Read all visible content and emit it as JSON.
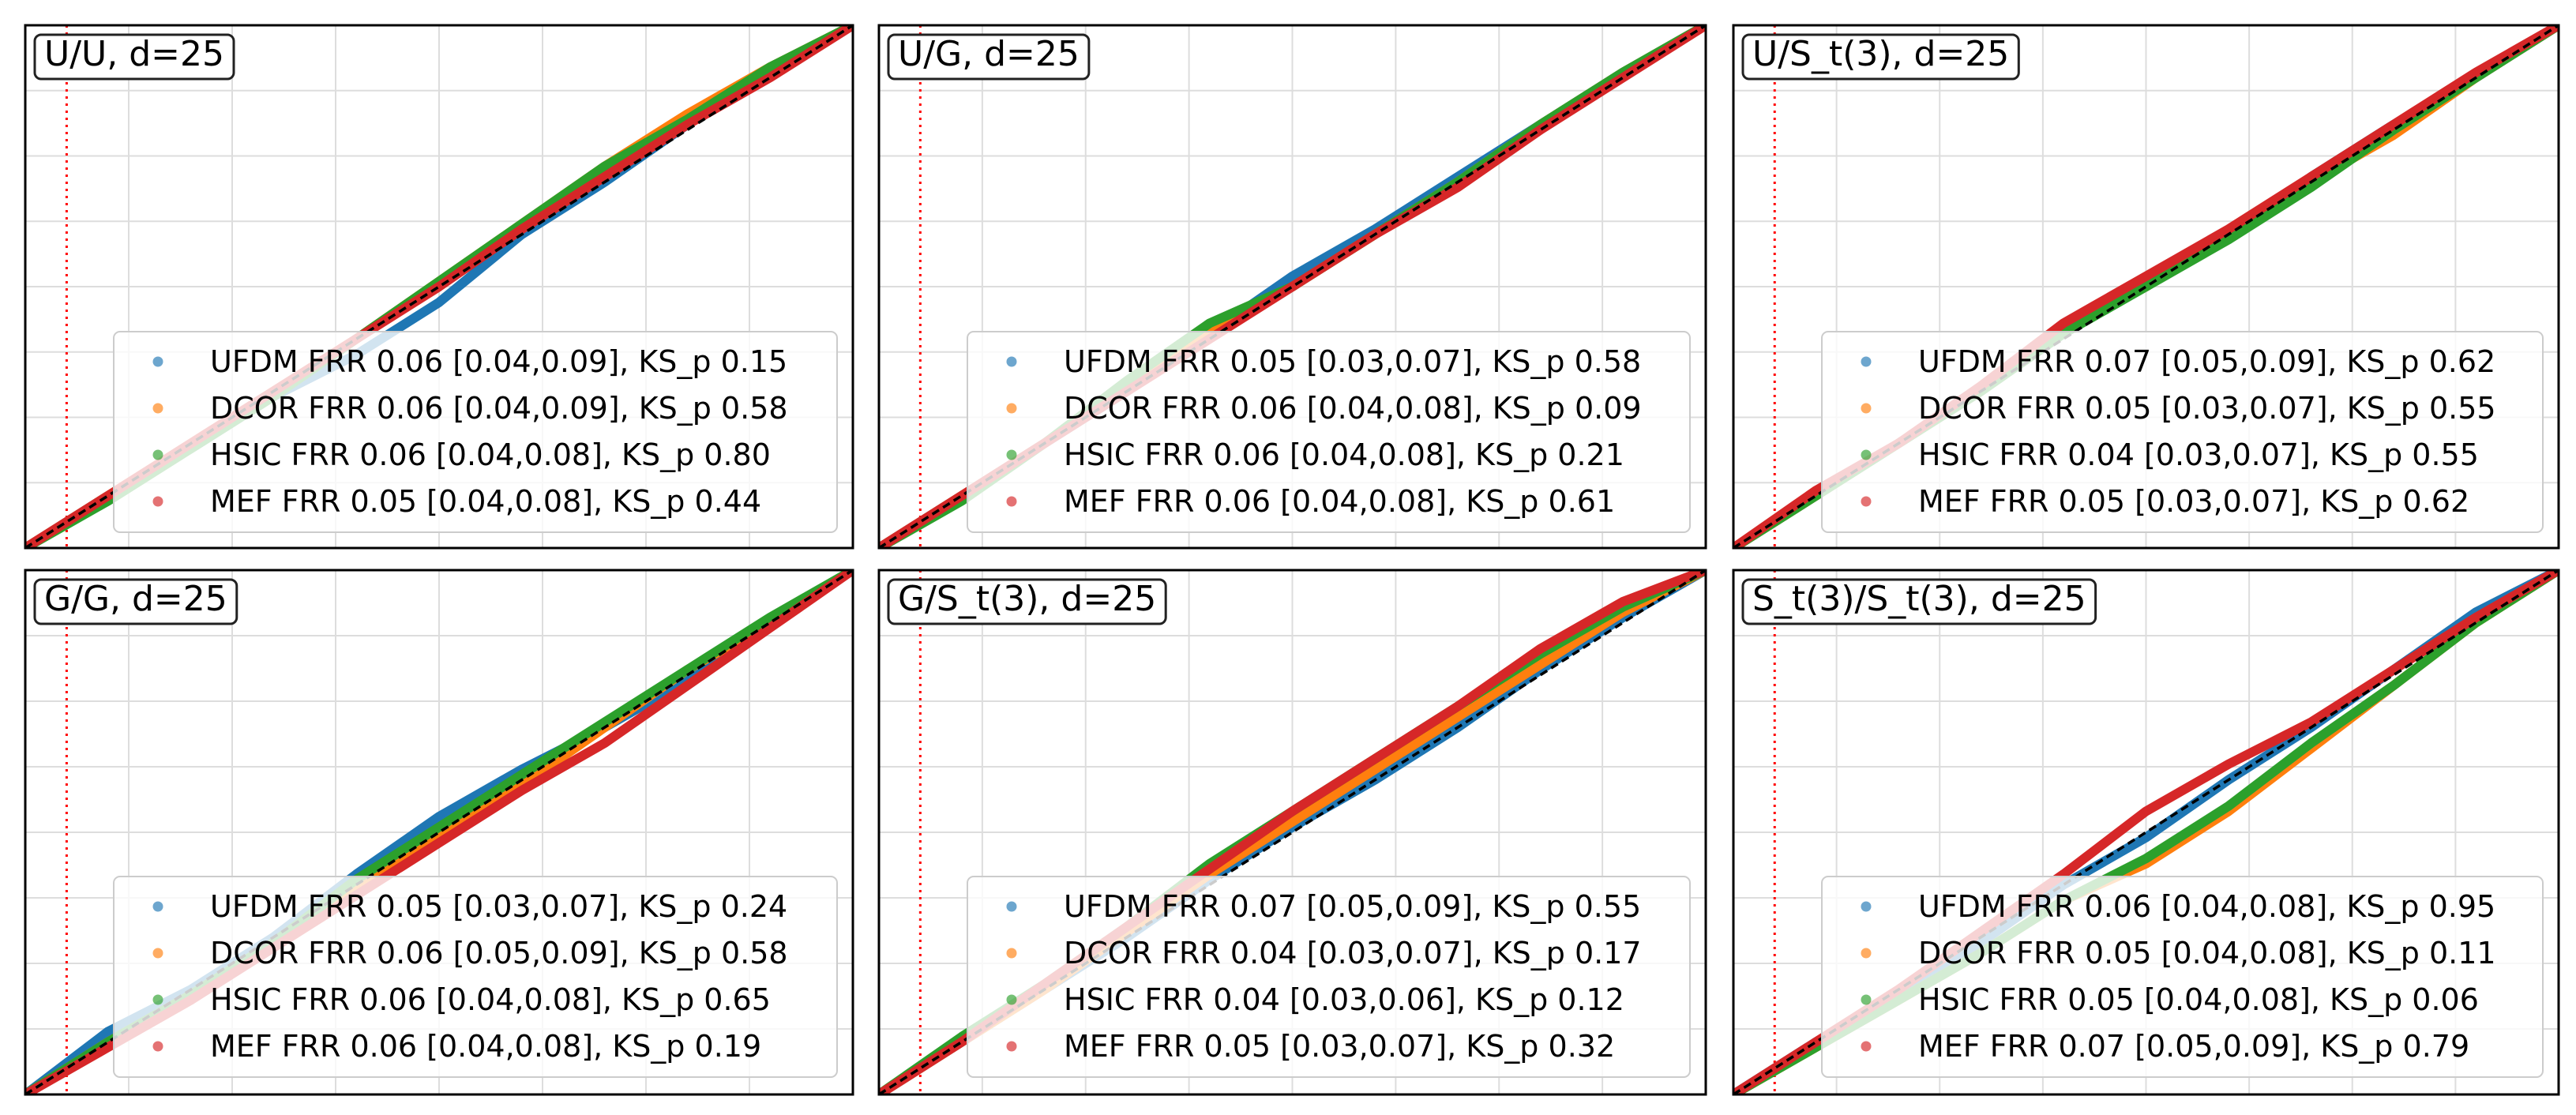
{
  "figure": {
    "colors": {
      "UFDM": "#1f77b4",
      "DCOR": "#ff7f0e",
      "HSIC": "#2ca02c",
      "MEF": "#d62728"
    },
    "diagonal_color": "#000000",
    "vline_color": "#ff0000",
    "grid": true
  },
  "chart_data": [
    {
      "type": "line",
      "title": "U/U, d=25",
      "xlim": [
        0,
        1
      ],
      "ylim": [
        0,
        1
      ],
      "vline_x": 0.05,
      "series": [
        {
          "name": "UFDM",
          "label": "UFDM FRR 0.06 [0.04,0.09], KS_p 0.15",
          "x": [
            0,
            0.1,
            0.2,
            0.3,
            0.4,
            0.5,
            0.6,
            0.7,
            0.8,
            0.9,
            1
          ],
          "y": [
            0,
            0.1,
            0.19,
            0.29,
            0.37,
            0.47,
            0.6,
            0.7,
            0.81,
            0.91,
            1
          ]
        },
        {
          "name": "DCOR",
          "label": "DCOR FRR 0.06 [0.04,0.09], KS_p 0.58",
          "x": [
            0,
            0.1,
            0.2,
            0.3,
            0.4,
            0.5,
            0.6,
            0.7,
            0.8,
            0.9,
            1
          ],
          "y": [
            0,
            0.1,
            0.2,
            0.3,
            0.4,
            0.51,
            0.62,
            0.73,
            0.83,
            0.92,
            1
          ]
        },
        {
          "name": "HSIC",
          "label": "HSIC FRR 0.06 [0.04,0.08], KS_p 0.80",
          "x": [
            0,
            0.1,
            0.2,
            0.3,
            0.4,
            0.5,
            0.6,
            0.7,
            0.8,
            0.9,
            1
          ],
          "y": [
            0,
            0.09,
            0.19,
            0.29,
            0.4,
            0.51,
            0.62,
            0.73,
            0.82,
            0.92,
            1
          ]
        },
        {
          "name": "MEF",
          "label": "MEF FRR 0.05 [0.04,0.08], KS_p 0.44",
          "x": [
            0,
            0.1,
            0.2,
            0.3,
            0.4,
            0.5,
            0.6,
            0.7,
            0.8,
            0.9,
            1
          ],
          "y": [
            0,
            0.1,
            0.2,
            0.3,
            0.4,
            0.5,
            0.61,
            0.71,
            0.81,
            0.9,
            1
          ]
        }
      ]
    },
    {
      "type": "line",
      "title": "U/G, d=25",
      "xlim": [
        0,
        1
      ],
      "ylim": [
        0,
        1
      ],
      "vline_x": 0.05,
      "series": [
        {
          "name": "UFDM",
          "label": "UFDM FRR 0.05 [0.03,0.07], KS_p 0.58",
          "x": [
            0,
            0.1,
            0.2,
            0.3,
            0.4,
            0.5,
            0.6,
            0.7,
            0.8,
            0.9,
            1
          ],
          "y": [
            0,
            0.1,
            0.2,
            0.3,
            0.41,
            0.52,
            0.61,
            0.71,
            0.81,
            0.91,
            1
          ]
        },
        {
          "name": "DCOR",
          "label": "DCOR FRR 0.06 [0.04,0.08], KS_p 0.09",
          "x": [
            0,
            0.1,
            0.2,
            0.3,
            0.4,
            0.5,
            0.6,
            0.7,
            0.8,
            0.9,
            1
          ],
          "y": [
            0,
            0.1,
            0.2,
            0.31,
            0.41,
            0.5,
            0.6,
            0.7,
            0.81,
            0.91,
            1
          ]
        },
        {
          "name": "HSIC",
          "label": "HSIC FRR 0.06 [0.04,0.08], KS_p 0.21",
          "x": [
            0,
            0.1,
            0.2,
            0.3,
            0.4,
            0.5,
            0.6,
            0.7,
            0.8,
            0.9,
            1
          ],
          "y": [
            0,
            0.09,
            0.2,
            0.32,
            0.43,
            0.5,
            0.6,
            0.7,
            0.81,
            0.91,
            1
          ]
        },
        {
          "name": "MEF",
          "label": "MEF FRR 0.06 [0.04,0.08], KS_p 0.61",
          "x": [
            0,
            0.1,
            0.2,
            0.3,
            0.4,
            0.5,
            0.6,
            0.7,
            0.8,
            0.9,
            1
          ],
          "y": [
            0,
            0.1,
            0.2,
            0.3,
            0.4,
            0.5,
            0.6,
            0.69,
            0.8,
            0.9,
            1
          ]
        }
      ]
    },
    {
      "type": "line",
      "title": "U/S_t(3), d=25",
      "xlim": [
        0,
        1
      ],
      "ylim": [
        0,
        1
      ],
      "vline_x": 0.05,
      "series": [
        {
          "name": "UFDM",
          "label": "UFDM FRR 0.07 [0.05,0.09], KS_p 0.62",
          "x": [
            0,
            0.1,
            0.2,
            0.3,
            0.4,
            0.5,
            0.6,
            0.7,
            0.8,
            0.9,
            1
          ],
          "y": [
            0,
            0.1,
            0.2,
            0.3,
            0.42,
            0.51,
            0.6,
            0.71,
            0.81,
            0.9,
            1
          ]
        },
        {
          "name": "DCOR",
          "label": "DCOR FRR 0.05 [0.03,0.07], KS_p 0.55",
          "x": [
            0,
            0.1,
            0.2,
            0.3,
            0.4,
            0.5,
            0.6,
            0.7,
            0.8,
            0.9,
            1
          ],
          "y": [
            0,
            0.1,
            0.2,
            0.3,
            0.42,
            0.5,
            0.6,
            0.7,
            0.79,
            0.9,
            1
          ]
        },
        {
          "name": "HSIC",
          "label": "HSIC FRR 0.04 [0.03,0.07], KS_p 0.55",
          "x": [
            0,
            0.1,
            0.2,
            0.3,
            0.4,
            0.5,
            0.6,
            0.7,
            0.8,
            0.9,
            1
          ],
          "y": [
            0,
            0.1,
            0.2,
            0.3,
            0.41,
            0.5,
            0.59,
            0.69,
            0.8,
            0.9,
            1
          ]
        },
        {
          "name": "MEF",
          "label": "MEF FRR 0.05 [0.03,0.07], KS_p 0.62",
          "x": [
            0,
            0.1,
            0.2,
            0.3,
            0.4,
            0.5,
            0.6,
            0.7,
            0.8,
            0.9,
            1
          ],
          "y": [
            0,
            0.11,
            0.2,
            0.31,
            0.43,
            0.52,
            0.61,
            0.71,
            0.81,
            0.91,
            1
          ]
        }
      ]
    },
    {
      "type": "line",
      "title": "G/G, d=25",
      "xlim": [
        0,
        1
      ],
      "ylim": [
        0,
        1
      ],
      "vline_x": 0.05,
      "series": [
        {
          "name": "UFDM",
          "label": "UFDM FRR 0.05 [0.03,0.07], KS_p 0.24",
          "x": [
            0,
            0.1,
            0.2,
            0.3,
            0.4,
            0.5,
            0.6,
            0.7,
            0.8,
            0.9,
            1
          ],
          "y": [
            0,
            0.12,
            0.2,
            0.3,
            0.42,
            0.53,
            0.62,
            0.7,
            0.79,
            0.9,
            1
          ]
        },
        {
          "name": "DCOR",
          "label": "DCOR FRR 0.06 [0.05,0.09], KS_p 0.58",
          "x": [
            0,
            0.1,
            0.2,
            0.3,
            0.4,
            0.5,
            0.6,
            0.7,
            0.8,
            0.9,
            1
          ],
          "y": [
            0,
            0.1,
            0.19,
            0.29,
            0.4,
            0.5,
            0.59,
            0.7,
            0.81,
            0.9,
            1
          ]
        },
        {
          "name": "HSIC",
          "label": "HSIC FRR 0.06 [0.04,0.08], KS_p 0.65",
          "x": [
            0,
            0.1,
            0.2,
            0.3,
            0.4,
            0.5,
            0.6,
            0.7,
            0.8,
            0.9,
            1
          ],
          "y": [
            0,
            0.1,
            0.19,
            0.29,
            0.41,
            0.51,
            0.61,
            0.71,
            0.81,
            0.91,
            1
          ]
        },
        {
          "name": "MEF",
          "label": "MEF FRR 0.06 [0.04,0.08], KS_p 0.19",
          "x": [
            0,
            0.1,
            0.2,
            0.3,
            0.4,
            0.5,
            0.6,
            0.7,
            0.8,
            0.9,
            1
          ],
          "y": [
            0,
            0.09,
            0.18,
            0.28,
            0.38,
            0.48,
            0.58,
            0.67,
            0.78,
            0.89,
            1
          ]
        }
      ]
    },
    {
      "type": "line",
      "title": "G/S_t(3), d=25",
      "xlim": [
        0,
        1
      ],
      "ylim": [
        0,
        1
      ],
      "vline_x": 0.05,
      "series": [
        {
          "name": "UFDM",
          "label": "UFDM FRR 0.07 [0.05,0.09], KS_p 0.55",
          "x": [
            0,
            0.1,
            0.2,
            0.3,
            0.4,
            0.5,
            0.6,
            0.7,
            0.8,
            0.9,
            1
          ],
          "y": [
            0,
            0.1,
            0.2,
            0.3,
            0.41,
            0.51,
            0.6,
            0.7,
            0.81,
            0.91,
            1
          ]
        },
        {
          "name": "DCOR",
          "label": "DCOR FRR 0.04 [0.03,0.07], KS_p 0.17",
          "x": [
            0,
            0.1,
            0.2,
            0.3,
            0.4,
            0.5,
            0.6,
            0.7,
            0.8,
            0.9,
            1
          ],
          "y": [
            0,
            0.1,
            0.2,
            0.31,
            0.42,
            0.52,
            0.62,
            0.72,
            0.82,
            0.92,
            1
          ]
        },
        {
          "name": "HSIC",
          "label": "HSIC FRR 0.04 [0.03,0.06], KS_p 0.12",
          "x": [
            0,
            0.1,
            0.2,
            0.3,
            0.4,
            0.5,
            0.6,
            0.7,
            0.8,
            0.9,
            1
          ],
          "y": [
            0,
            0.11,
            0.21,
            0.32,
            0.44,
            0.54,
            0.64,
            0.74,
            0.84,
            0.93,
            1
          ]
        },
        {
          "name": "MEF",
          "label": "MEF FRR 0.05 [0.03,0.07], KS_p 0.32",
          "x": [
            0,
            0.1,
            0.2,
            0.3,
            0.4,
            0.5,
            0.6,
            0.7,
            0.8,
            0.9,
            1
          ],
          "y": [
            0,
            0.1,
            0.21,
            0.32,
            0.43,
            0.54,
            0.64,
            0.74,
            0.85,
            0.94,
            1
          ]
        }
      ]
    },
    {
      "type": "line",
      "title": "S_t(3)/S_t(3), d=25",
      "xlim": [
        0,
        1
      ],
      "ylim": [
        0,
        1
      ],
      "vline_x": 0.05,
      "series": [
        {
          "name": "UFDM",
          "label": "UFDM FRR 0.06 [0.04,0.08], KS_p 0.95",
          "x": [
            0,
            0.1,
            0.2,
            0.3,
            0.4,
            0.5,
            0.6,
            0.7,
            0.8,
            0.9,
            1
          ],
          "y": [
            0,
            0.1,
            0.19,
            0.29,
            0.4,
            0.49,
            0.6,
            0.7,
            0.81,
            0.92,
            1
          ]
        },
        {
          "name": "DCOR",
          "label": "DCOR FRR 0.05 [0.04,0.08], KS_p 0.11",
          "x": [
            0,
            0.1,
            0.2,
            0.3,
            0.4,
            0.5,
            0.6,
            0.7,
            0.8,
            0.9,
            1
          ],
          "y": [
            0,
            0.09,
            0.18,
            0.27,
            0.37,
            0.44,
            0.54,
            0.66,
            0.78,
            0.9,
            1
          ]
        },
        {
          "name": "HSIC",
          "label": "HSIC FRR 0.05 [0.04,0.08], KS_p 0.06",
          "x": [
            0,
            0.1,
            0.2,
            0.3,
            0.4,
            0.5,
            0.6,
            0.7,
            0.8,
            0.9,
            1
          ],
          "y": [
            0,
            0.09,
            0.18,
            0.27,
            0.37,
            0.45,
            0.55,
            0.67,
            0.78,
            0.9,
            1
          ]
        },
        {
          "name": "MEF",
          "label": "MEF FRR 0.07 [0.05,0.09], KS_p 0.79",
          "x": [
            0,
            0.1,
            0.2,
            0.3,
            0.4,
            0.5,
            0.6,
            0.7,
            0.8,
            0.9,
            1
          ],
          "y": [
            0,
            0.1,
            0.2,
            0.31,
            0.42,
            0.54,
            0.63,
            0.71,
            0.81,
            0.91,
            1
          ]
        }
      ]
    }
  ]
}
